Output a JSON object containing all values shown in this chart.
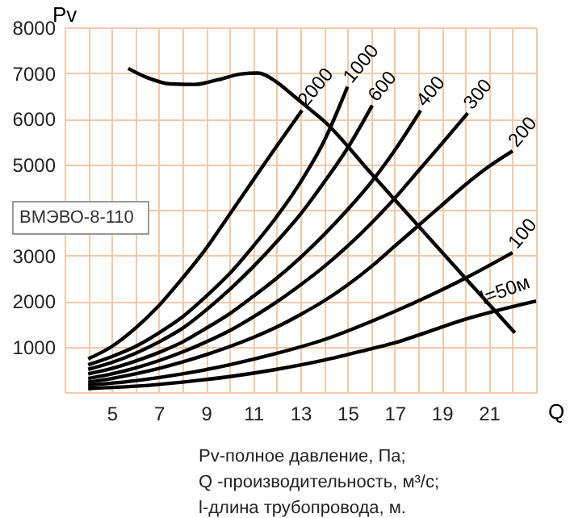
{
  "chart_data": {
    "type": "line",
    "xlabel": "Q",
    "ylabel": "Pv",
    "xlim": [
      3,
      23
    ],
    "ylim": [
      0,
      8000
    ],
    "xticks": [
      {
        "value": 3,
        "label": null
      },
      {
        "value": 4,
        "label": null
      },
      5,
      {
        "value": 6,
        "label": null
      },
      7,
      {
        "value": 8,
        "label": null
      },
      9,
      {
        "value": 10,
        "label": null
      },
      11,
      {
        "value": 12,
        "label": null
      },
      13,
      {
        "value": 14,
        "label": null
      },
      15,
      {
        "value": 16,
        "label": null
      },
      17,
      {
        "value": 18,
        "label": null
      },
      19,
      {
        "value": 20,
        "label": null
      },
      21,
      {
        "value": 22,
        "label": null
      },
      {
        "value": 23,
        "label": null
      }
    ],
    "yticks": [
      1000,
      2000,
      3000,
      {
        "value": 4000,
        "label": null
      },
      5000,
      6000,
      7000,
      8000
    ],
    "grid": true,
    "marker": "none",
    "line_style": "solid",
    "series": [
      {
        "name": "2000",
        "color": "#000000",
        "x": [
          4,
          5,
          6,
          7,
          8,
          9,
          10,
          11,
          12,
          13.07
        ],
        "values": [
          730,
          1000,
          1400,
          1900,
          2500,
          3150,
          3900,
          4650,
          5400,
          6180
        ]
      },
      {
        "name": "1000",
        "color": "#000000",
        "x": [
          4,
          5,
          6,
          7,
          8,
          9,
          10,
          11,
          12,
          13,
          14,
          15
        ],
        "values": [
          600,
          780,
          1000,
          1300,
          1650,
          2100,
          2600,
          3200,
          3850,
          4600,
          5500,
          6700
        ]
      },
      {
        "name": "600",
        "color": "#000000",
        "x": [
          4,
          5,
          6,
          7,
          8,
          9,
          10,
          11,
          12,
          13,
          14,
          15,
          16.05
        ],
        "values": [
          500,
          650,
          850,
          1100,
          1400,
          1800,
          2250,
          2750,
          3300,
          3900,
          4600,
          5350,
          6290
        ]
      },
      {
        "name": "400",
        "color": "#000000",
        "x": [
          4,
          5,
          6,
          7,
          8,
          9,
          10,
          11,
          12,
          13,
          14,
          15,
          16,
          17,
          18.1
        ],
        "values": [
          400,
          520,
          680,
          870,
          1100,
          1400,
          1720,
          2100,
          2500,
          2950,
          3450,
          4000,
          4600,
          5300,
          6180
        ]
      },
      {
        "name": "300",
        "color": "#000000",
        "x": [
          4,
          5,
          6,
          7,
          8,
          9,
          10,
          11,
          12,
          13,
          14,
          15,
          16,
          17,
          18,
          19,
          20.1
        ],
        "values": [
          300,
          400,
          530,
          690,
          880,
          1100,
          1350,
          1650,
          1980,
          2350,
          2750,
          3200,
          3700,
          4250,
          4850,
          5450,
          6120
        ]
      },
      {
        "name": "200",
        "color": "#000000",
        "x": [
          4,
          5,
          6,
          7,
          8,
          9,
          10,
          11,
          12,
          13,
          14,
          15,
          16,
          17,
          18,
          19,
          20,
          21,
          22
        ],
        "values": [
          220,
          300,
          400,
          520,
          660,
          820,
          1000,
          1200,
          1430,
          1700,
          2000,
          2350,
          2750,
          3200,
          3650,
          4100,
          4550,
          4950,
          5290
        ]
      },
      {
        "name": "100",
        "color": "#000000",
        "x": [
          4,
          6,
          8,
          10,
          12,
          14,
          16,
          18,
          20,
          22
        ],
        "values": [
          150,
          250,
          400,
          600,
          850,
          1150,
          1550,
          2000,
          2500,
          3060
        ]
      },
      {
        "name": "l=50м",
        "color": "#000000",
        "x": [
          4,
          6,
          8,
          10,
          12,
          14,
          16,
          17,
          18,
          20,
          23
        ],
        "values": [
          80,
          130,
          220,
          340,
          500,
          700,
          950,
          1080,
          1250,
          1600,
          2000
        ]
      },
      {
        "color": "#000000",
        "x": [
          5.7,
          6.5,
          7.5,
          8.5,
          9.5,
          10.5,
          11.2,
          12,
          12.6,
          13.3,
          14,
          16,
          18,
          20,
          22.1
        ],
        "values": [
          7100,
          6900,
          6760,
          6750,
          6850,
          6980,
          7000,
          6800,
          6550,
          6250,
          5950,
          4800,
          3650,
          2500,
          1300
        ]
      }
    ],
    "annotations": [
      "ВМЭВО-8-110",
      "Pv-полное давление, Па;",
      "Q -производительность, м³/с;",
      "l-длина трубопровода, м."
    ]
  }
}
